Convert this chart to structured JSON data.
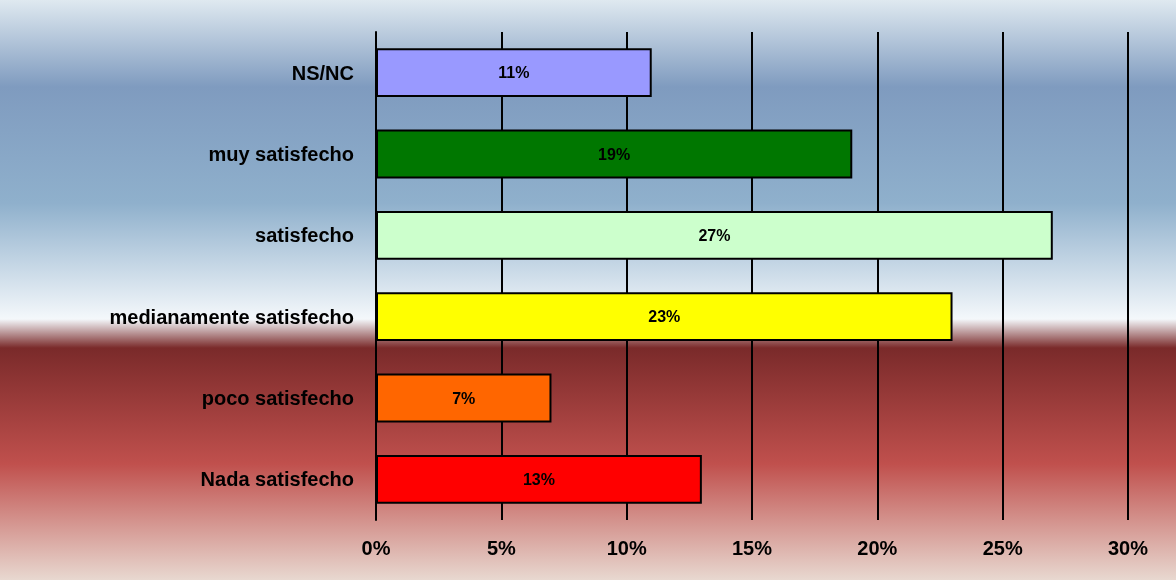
{
  "chart_data": {
    "type": "bar",
    "orientation": "horizontal",
    "categories": [
      "NS/NC",
      "muy satisfecho",
      "satisfecho",
      "medianamente satisfecho",
      "poco satisfecho",
      "Nada satisfecho"
    ],
    "values": [
      11,
      19,
      27,
      23,
      7,
      13
    ],
    "colors": [
      "#9999ff",
      "#007700",
      "#ccffcc",
      "#ffff00",
      "#ff6600",
      "#ff0000"
    ],
    "value_labels": [
      "11%",
      "19%",
      "27%",
      "23%",
      "7%",
      "13%"
    ],
    "xlim": [
      0,
      30
    ],
    "xticks": [
      {
        "value": 0,
        "label": "0%"
      },
      {
        "value": 5,
        "label": "5%"
      },
      {
        "value": 10,
        "label": "10%"
      },
      {
        "value": 15,
        "label": "15%"
      },
      {
        "value": 20,
        "label": "20%"
      },
      {
        "value": 25,
        "label": "25%"
      },
      {
        "value": 30,
        "label": "30%"
      }
    ],
    "grid": "x"
  }
}
